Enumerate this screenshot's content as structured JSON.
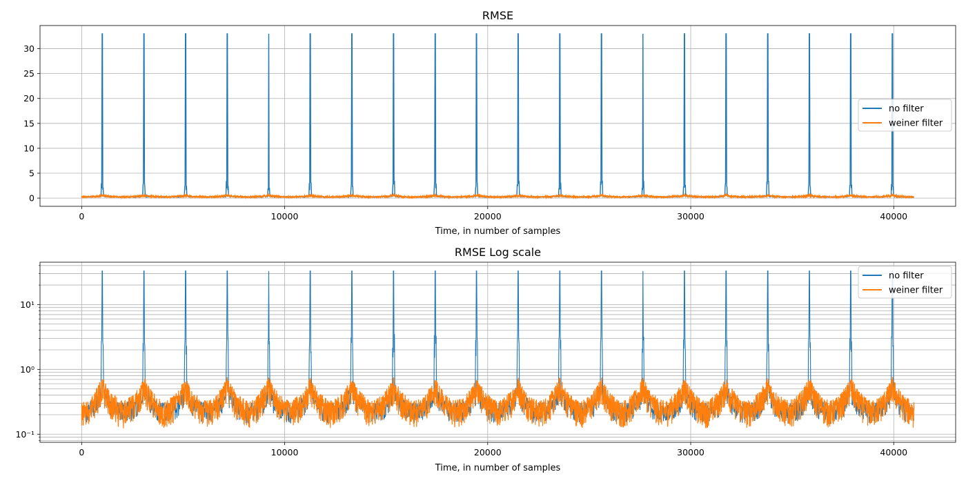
{
  "chart_data": [
    {
      "type": "line",
      "title": "RMSE",
      "xlabel": "Time, in number of samples",
      "ylabel": "",
      "yscale": "linear",
      "xlim": [
        -2050,
        43050
      ],
      "ylim": [
        -1.65,
        34.65
      ],
      "xticks": [
        0,
        10000,
        20000,
        30000,
        40000
      ],
      "xtick_labels": [
        "0",
        "10000",
        "20000",
        "30000",
        "40000"
      ],
      "yticks": [
        0,
        5,
        10,
        15,
        20,
        25,
        30
      ],
      "ytick_labels": [
        "0",
        "5",
        "10",
        "15",
        "20",
        "25",
        "30"
      ],
      "grid": true,
      "legend": "center-right",
      "spike_period_samples": 2048,
      "spike_first_center": 1024,
      "series": [
        {
          "name": "no filter",
          "color": "#1f77b4",
          "baseline": 0.2,
          "peak_value": 33.0
        },
        {
          "name": "weiner filter",
          "color": "#ff7f0e",
          "baseline": 0.2,
          "peak_value": 0.55
        }
      ]
    },
    {
      "type": "line",
      "title": "RMSE Log scale",
      "xlabel": "Time, in number of samples",
      "ylabel": "",
      "yscale": "log",
      "xlim": [
        -2050,
        43050
      ],
      "ylim": [
        0.075,
        45
      ],
      "xticks": [
        0,
        10000,
        20000,
        30000,
        40000
      ],
      "xtick_labels": [
        "0",
        "10000",
        "20000",
        "30000",
        "40000"
      ],
      "yticks": [
        0.1,
        1,
        10
      ],
      "ytick_labels": [
        "10⁻¹",
        "10⁰",
        "10¹"
      ],
      "grid": true,
      "legend": "top-right",
      "spike_period_samples": 2048,
      "spike_first_center": 1024,
      "series": [
        {
          "name": "no filter",
          "color": "#1f77b4",
          "baseline": 0.2,
          "peak_value": 33.0
        },
        {
          "name": "weiner filter",
          "color": "#ff7f0e",
          "baseline": 0.2,
          "peak_value": 0.55
        }
      ]
    }
  ]
}
